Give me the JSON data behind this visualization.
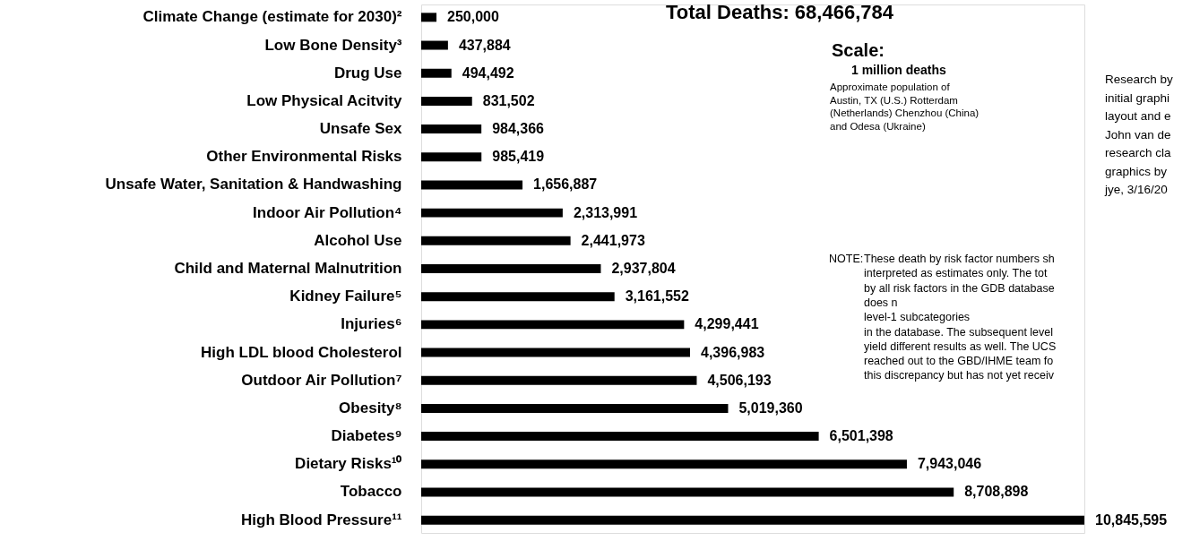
{
  "chart_data": {
    "type": "bar",
    "orientation": "horizontal",
    "title": "Total Deaths: 68,466,784",
    "categories": [
      "Climate Change (estimate for 2030)²",
      "Low Bone Density³",
      "Drug Use",
      "Low Physical Acitvity",
      "Unsafe Sex",
      "Other Environmental Risks",
      "Unsafe Water, Sanitation & Handwashing",
      "Indoor Air Pollution⁴",
      "Alcohol Use",
      "Child and Maternal Malnutrition",
      "Kidney Failure⁵",
      "Injuries⁶",
      "High LDL blood Cholesterol",
      "Outdoor Air Pollution⁷",
      "Obesity⁸",
      "Diabetes⁹",
      "Dietary Risks¹⁰",
      "Tobacco",
      "High Blood Pressure¹¹"
    ],
    "values": [
      250000,
      437884,
      494492,
      831502,
      984366,
      985419,
      1656887,
      2313991,
      2441973,
      2937804,
      3161552,
      4299441,
      4396983,
      4506193,
      5019360,
      6501398,
      7943046,
      8708898,
      10845595
    ],
    "color": "#000000",
    "grid": false,
    "value_labels": [
      "250,000",
      "437,884",
      "494,492",
      "831,502",
      "984,366",
      "985,419",
      "1,656,887",
      "2,313,991",
      "2,441,973",
      "2,937,804",
      "3,161,552",
      "4,299,441",
      "4,396,983",
      "4,506,193",
      "5,019,360",
      "6,501,398",
      "7,943,046",
      "8,708,898",
      "10,845,595"
    ],
    "annotations": [
      "Scale:",
      "1 million deaths",
      "Approximate population of\nAustin, TX (U.S.) Rotterdam\n(Netherlands) Chenzhou (China)\nand Odesa (Ukraine)",
      "NOTE:",
      "These death by risk factor numbers sh\ninterpreted as estimates only.  The tot\nby all risk factors in the GDB database\ndoes n\nlevel-1 subcategories\nin the database.  The subsequent level\nyield different results as well.  The UCS\nreached out to the GBD/IHME team fo\nthis discrepancy but has not yet receiv",
      "Research by\ninitial graphi\nlayout and e\nJohn van de\nresearch cla\ngraphics by\njye, 3/16/20"
    ]
  }
}
